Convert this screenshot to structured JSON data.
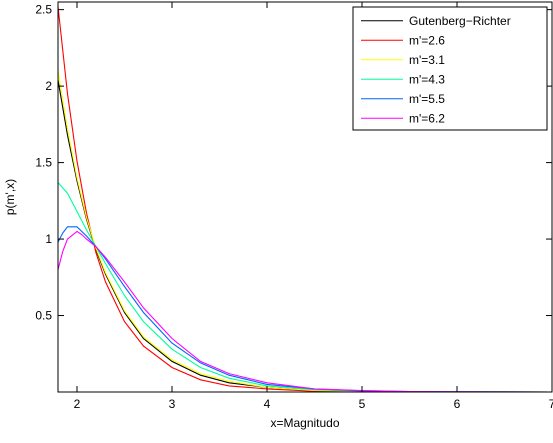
{
  "chart_data": {
    "type": "line",
    "title": "",
    "xlabel": "x=Magnitudo",
    "ylabel": "p(m',x)",
    "xlim": [
      1.8,
      7
    ],
    "ylim": [
      0,
      2.55
    ],
    "xticks": [
      2,
      3,
      4,
      5,
      6,
      7
    ],
    "yticks": [
      0.5,
      1,
      1.5,
      2,
      2.5
    ],
    "grid": false,
    "legend_position": "top-right",
    "series": [
      {
        "name": "Gutenberg−Richter",
        "color": "#000000",
        "x": [
          1.8,
          1.9,
          2.0,
          2.1,
          2.2,
          2.3,
          2.5,
          2.7,
          3.0,
          3.3,
          3.6,
          4.0,
          4.5,
          5.0,
          5.5,
          6.0,
          7.0
        ],
        "y": [
          2.04,
          1.68,
          1.38,
          1.13,
          0.93,
          0.77,
          0.52,
          0.35,
          0.2,
          0.11,
          0.06,
          0.03,
          0.01,
          0.005,
          0.002,
          0.001,
          0.0
        ]
      },
      {
        "name": "m'=2.6",
        "color": "#ff0000",
        "x": [
          1.8,
          1.9,
          2.0,
          2.1,
          2.2,
          2.3,
          2.5,
          2.7,
          3.0,
          3.3,
          3.6,
          4.0,
          4.5,
          5.0,
          5.5,
          6.0,
          7.0
        ],
        "y": [
          2.52,
          1.95,
          1.51,
          1.17,
          0.91,
          0.72,
          0.46,
          0.3,
          0.16,
          0.08,
          0.04,
          0.02,
          0.005,
          0.002,
          0.001,
          0.0,
          0.0
        ]
      },
      {
        "name": "m'=3.1",
        "color": "#ffff00",
        "x": [
          1.8,
          1.9,
          2.0,
          2.1,
          2.2,
          2.3,
          2.5,
          2.7,
          3.0,
          3.3,
          3.6,
          4.0,
          4.5,
          5.0,
          5.5,
          6.0,
          7.0
        ],
        "y": [
          2.1,
          1.72,
          1.4,
          1.14,
          0.94,
          0.78,
          0.53,
          0.36,
          0.21,
          0.12,
          0.07,
          0.03,
          0.01,
          0.005,
          0.002,
          0.001,
          0.0
        ]
      },
      {
        "name": "m'=4.3",
        "color": "#00ff99",
        "x": [
          1.8,
          1.9,
          2.0,
          2.1,
          2.2,
          2.3,
          2.5,
          2.7,
          3.0,
          3.3,
          3.6,
          4.0,
          4.5,
          5.0,
          5.5,
          6.0,
          7.0
        ],
        "y": [
          1.37,
          1.3,
          1.18,
          1.06,
          0.95,
          0.84,
          0.63,
          0.46,
          0.28,
          0.16,
          0.09,
          0.04,
          0.015,
          0.006,
          0.002,
          0.001,
          0.0
        ]
      },
      {
        "name": "m'=5.5",
        "color": "#0066ff",
        "x": [
          1.8,
          1.85,
          1.9,
          2.0,
          2.05,
          2.1,
          2.2,
          2.3,
          2.5,
          2.7,
          3.0,
          3.3,
          3.6,
          4.0,
          4.5,
          5.0,
          5.5,
          6.0,
          7.0
        ],
        "y": [
          0.98,
          1.04,
          1.08,
          1.08,
          1.05,
          1.02,
          0.95,
          0.87,
          0.69,
          0.52,
          0.32,
          0.19,
          0.11,
          0.05,
          0.02,
          0.008,
          0.003,
          0.001,
          0.0
        ]
      },
      {
        "name": "m'=6.2",
        "color": "#ff00ff",
        "x": [
          1.8,
          1.85,
          1.9,
          2.0,
          2.05,
          2.1,
          2.2,
          2.3,
          2.5,
          2.7,
          3.0,
          3.3,
          3.6,
          4.0,
          4.5,
          5.0,
          5.5,
          6.0,
          7.0
        ],
        "y": [
          0.8,
          0.92,
          1.0,
          1.05,
          1.03,
          1.0,
          0.95,
          0.88,
          0.72,
          0.55,
          0.35,
          0.2,
          0.12,
          0.06,
          0.02,
          0.009,
          0.003,
          0.001,
          0.0
        ]
      }
    ]
  }
}
